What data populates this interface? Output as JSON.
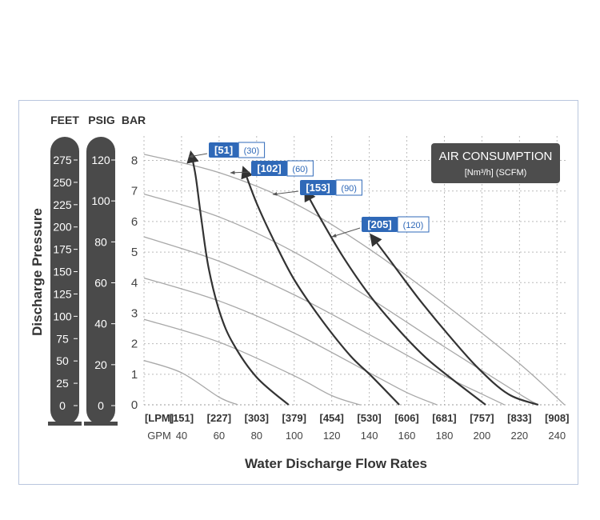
{
  "chart_data": {
    "type": "line",
    "title": "AIR CONSUMPTION",
    "legend_unit": "[Nm³/h] (SCFM)",
    "legend_position": "top-right",
    "xlabel": "Water Discharge Flow Rates",
    "ylabel": "Discharge Pressure",
    "scale_headers": {
      "feet": "FEET",
      "psig": "PSIG",
      "bar": "BAR"
    },
    "x_unit_primary": "[LPM]",
    "x_unit_secondary": "GPM",
    "x_ticks_gpm": [
      40,
      60,
      80,
      100,
      120,
      140,
      160,
      180,
      200,
      220,
      240
    ],
    "x_tick_labels_lpm": [
      "[151]",
      "[227]",
      "[303]",
      "[379]",
      "[454]",
      "[530]",
      "[606]",
      "[681]",
      "[757]",
      "[833]",
      "[908]"
    ],
    "xlim_gpm": [
      20,
      245
    ],
    "y_ticks_bar": [
      0,
      1,
      2,
      3,
      4,
      5,
      6,
      7,
      8
    ],
    "ylim_bar": [
      0,
      8.8
    ],
    "feet_ticks": [
      0,
      25,
      50,
      75,
      100,
      125,
      150,
      175,
      200,
      225,
      250,
      275
    ],
    "psig_ticks": [
      0,
      20,
      40,
      60,
      80,
      100,
      120
    ],
    "grid": true,
    "pressure_curves": [
      {
        "name": "curve-1",
        "x": [
          20,
          40,
          60,
          70
        ],
        "y": [
          1.45,
          1.05,
          0.25,
          0
        ]
      },
      {
        "name": "curve-2",
        "x": [
          20,
          60,
          100,
          120,
          135
        ],
        "y": [
          2.8,
          2.05,
          0.95,
          0.3,
          0
        ]
      },
      {
        "name": "curve-3",
        "x": [
          20,
          60,
          100,
          140,
          160,
          176
        ],
        "y": [
          4.15,
          3.4,
          2.35,
          1.05,
          0.4,
          0
        ]
      },
      {
        "name": "curve-4",
        "x": [
          20,
          60,
          100,
          140,
          180,
          200,
          212
        ],
        "y": [
          5.5,
          4.7,
          3.6,
          2.3,
          0.95,
          0.35,
          0
        ]
      },
      {
        "name": "curve-5",
        "x": [
          20,
          60,
          100,
          140,
          180,
          220,
          230
        ],
        "y": [
          6.9,
          6.15,
          5.0,
          3.5,
          1.9,
          0.35,
          0
        ]
      },
      {
        "name": "curve-6",
        "x": [
          20,
          60,
          100,
          140,
          180,
          220,
          244
        ],
        "y": [
          8.2,
          7.6,
          6.6,
          5.1,
          3.3,
          1.35,
          0
        ]
      }
    ],
    "air_curves": [
      {
        "label_nm3h": "[51]",
        "label_scfm": "(30)",
        "x": [
          45,
          47.5,
          50.5,
          54.5,
          60.5,
          67.5,
          80,
          97
        ],
        "y": [
          8.25,
          7.5,
          6.1,
          4.45,
          3.0,
          2.0,
          0.9,
          0
        ]
      },
      {
        "label_nm3h": "[102]",
        "label_scfm": "(60)",
        "x": [
          73,
          80,
          89,
          100,
          115,
          130,
          141,
          156
        ],
        "y": [
          7.75,
          6.6,
          5.4,
          4.1,
          2.75,
          1.6,
          0.95,
          0
        ]
      },
      {
        "label_nm3h": "[153]",
        "label_scfm": "(90)",
        "x": [
          106,
          114,
          126,
          140,
          155,
          170,
          185,
          202
        ],
        "y": [
          7.0,
          6.1,
          4.85,
          3.6,
          2.5,
          1.55,
          0.8,
          0
        ]
      },
      {
        "label_nm3h": "[205]",
        "label_scfm": "(120)",
        "x": [
          141,
          152,
          166,
          182,
          198,
          214,
          230
        ],
        "y": [
          5.55,
          4.65,
          3.5,
          2.3,
          1.2,
          0.35,
          0
        ]
      }
    ]
  }
}
